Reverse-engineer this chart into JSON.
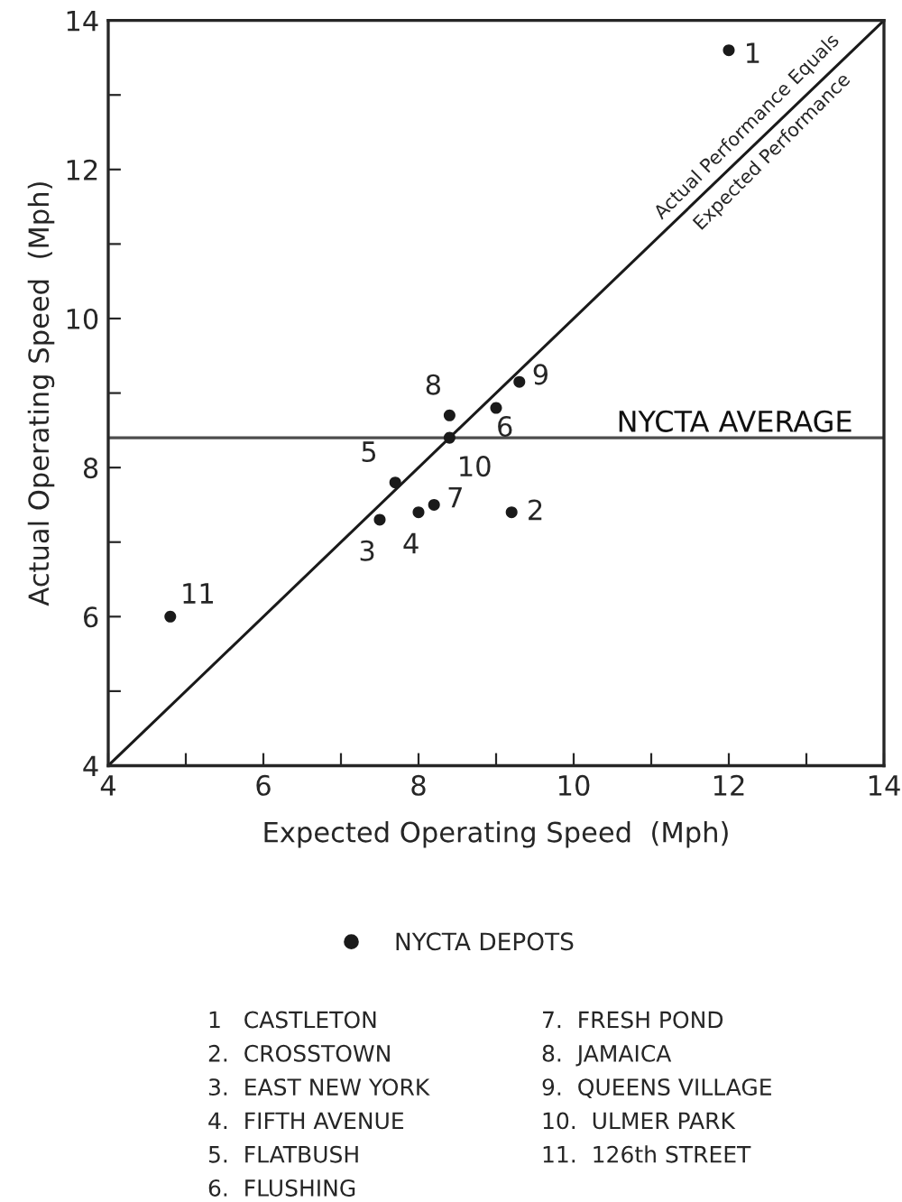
{
  "chart_data": {
    "type": "scatter",
    "xlabel": "Expected Operating Speed  (Mph)",
    "ylabel": "Actual Operating Speed  (Mph)",
    "x": [
      12.0,
      9.2,
      7.5,
      8.0,
      7.7,
      9.0,
      8.2,
      8.4,
      9.3,
      8.4,
      4.8
    ],
    "series": [
      {
        "name": "NYCTA DEPOTS",
        "color": "#1a1a1a",
        "values": [
          13.6,
          7.4,
          7.3,
          7.4,
          7.8,
          8.8,
          7.5,
          8.7,
          9.15,
          8.4,
          6.0
        ]
      },
      {
        "type": "line",
        "color": "#1a1a1a",
        "x": [
          4,
          14
        ],
        "values": [
          4,
          14
        ],
        "marker": "none"
      }
    ],
    "marker": "circle",
    "xlim": [
      4,
      14
    ],
    "ylim": [
      4,
      14
    ],
    "xticks": [
      4,
      {
        "value": 5,
        "label": null
      },
      6,
      {
        "value": 7,
        "label": null
      },
      8,
      {
        "value": 9,
        "label": null
      },
      10,
      {
        "value": 11,
        "label": null
      },
      12,
      {
        "value": 13,
        "label": null
      },
      14
    ],
    "yticks": [
      4,
      {
        "value": 5,
        "label": null
      },
      6,
      {
        "value": 7,
        "label": null
      },
      8,
      {
        "value": 9,
        "label": null
      },
      10,
      {
        "value": 11,
        "label": null
      },
      12,
      {
        "value": 13,
        "label": null
      },
      14
    ],
    "ref_lines": [
      {
        "axis": "y",
        "value": 8.4,
        "label": "NYCTA AVERAGE",
        "color": "#4d4d4d"
      }
    ],
    "grid": false,
    "legend": "bottom",
    "annotations": [
      {
        "text": "1",
        "x": 12.0,
        "y": 13.6
      },
      {
        "text": "2",
        "x": 9.2,
        "y": 7.4
      },
      {
        "text": "3",
        "x": 7.5,
        "y": 7.3
      },
      {
        "text": "4",
        "x": 8.0,
        "y": 7.4
      },
      {
        "text": "5",
        "x": 7.7,
        "y": 7.8
      },
      {
        "text": "6",
        "x": 9.0,
        "y": 8.8
      },
      {
        "text": "7",
        "x": 8.2,
        "y": 7.5
      },
      {
        "text": "8",
        "x": 8.4,
        "y": 8.7
      },
      {
        "text": "9",
        "x": 9.3,
        "y": 9.15
      },
      {
        "text": "10",
        "x": 8.4,
        "y": 8.4
      },
      {
        "text": "11",
        "x": 4.8,
        "y": 6.0
      },
      {
        "text": "Actual Performance Equals",
        "x": 12.4,
        "y": 12.4
      },
      {
        "text": "Expected Performance",
        "x": 12.4,
        "y": 12.4
      },
      "1   CASTLETON",
      "2.  CROSSTOWN",
      "3.  EAST NEW YORK",
      "4.  FIFTH AVENUE",
      "5.  FLATBUSH",
      "6.  FLUSHING",
      "7.  FRESH POND",
      "8.  JAMAICA",
      "9.  QUEENS VILLAGE",
      "10.  ULMER PARK",
      "11.  126th STREET"
    ]
  }
}
